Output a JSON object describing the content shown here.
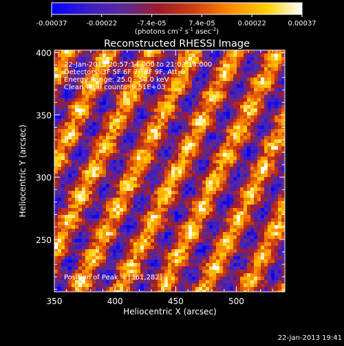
{
  "colorbar": {
    "tick_labels": [
      "-0.00037",
      "-0.00022",
      "-7.4e-05",
      "7.4e-05",
      "0.00022",
      "0.00037"
    ],
    "unit_label": "(photons cm",
    "unit_sup1": "-2",
    "unit_mid": " s",
    "unit_sup2": "-1",
    "unit_end": " asec",
    "unit_sup3": "-2",
    "unit_close": ")",
    "min": -0.00037,
    "max": 0.00037,
    "colormap": [
      "#0000ff",
      "#3a1cc8",
      "#5a2a9a",
      "#a01a2a",
      "#d04010",
      "#ff8a00",
      "#ffd000",
      "#ffffff"
    ]
  },
  "chart_data": {
    "type": "heatmap",
    "title": "Reconstructed RHESSI Image",
    "xlabel": "Heliocentric X (arcsec)",
    "ylabel": "Heliocentric Y (arcsec)",
    "xlim": [
      350,
      540
    ],
    "ylim": [
      208,
      402
    ],
    "x_ticks": [
      350,
      400,
      450,
      500
    ],
    "y_ticks": [
      250,
      300,
      350,
      400
    ],
    "grid": false,
    "pattern": "diagonal fringe stripes (back-projection modulation pattern)",
    "peak_position": [
      361,
      282
    ]
  },
  "annotations": {
    "line1": "22-Jan-2013 20:57:14.000 to 21:03:14.000",
    "line2": "Detectors: 3F 5F 6F 7F 8F 9F, Att_0",
    "line3": "Energy Range: 25.0 - 50.0 keV",
    "line4": "Clean     Total counts: 9.51E+03",
    "peak": "Position of Peak = [361,282]"
  },
  "footer": {
    "timestamp": "22-Jan-2013 19:41"
  }
}
